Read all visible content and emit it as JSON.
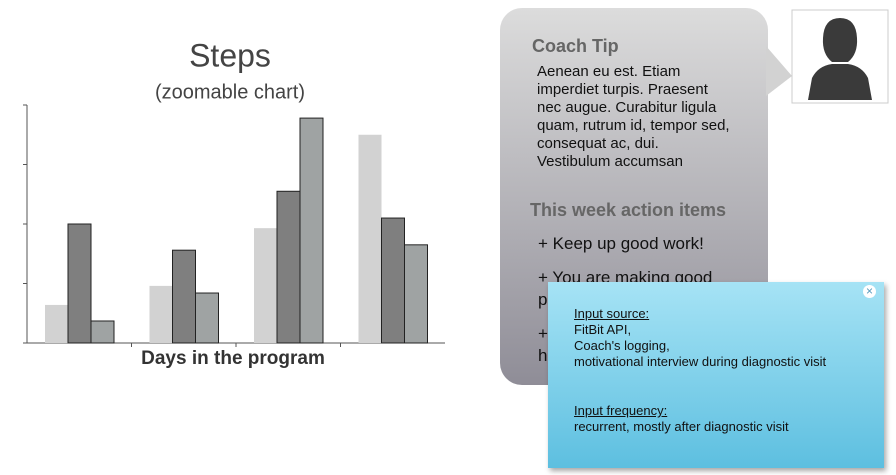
{
  "chart_data": {
    "type": "bar",
    "title": "Steps",
    "subtitle": "(zoomable chart)",
    "x_label": "Days in the program",
    "categories": [
      null,
      null,
      null,
      null
    ],
    "series": [
      {
        "color": "#d2d2d2",
        "values": [
          0.64,
          0.96,
          1.93,
          3.5
        ]
      },
      {
        "color": "#7f7f7f",
        "values": [
          2.0,
          1.56,
          2.55,
          2.1
        ]
      },
      {
        "color": "#9fa3a3",
        "values": [
          0.37,
          0.84,
          3.78,
          1.65
        ]
      }
    ],
    "ylim": [
      0,
      4
    ],
    "yticks": [
      0,
      1,
      2,
      3,
      4
    ]
  },
  "coach_tip": {
    "title": "Coach Tip",
    "lines": [
      "Aenean eu est. Etiam",
      "imperdiet turpis. Praesent",
      "nec augue. Curabitur ligula",
      "quam, rutrum id, tempor sed,",
      "consequat ac, dui.",
      "Vestibulum accumsan"
    ]
  },
  "action_items": {
    "title": "This week action items",
    "items": [
      [
        "+ Keep up good work!"
      ],
      [
        "+ You are making good",
        "pr"
      ],
      [
        "+",
        "he"
      ]
    ]
  },
  "note": {
    "source_label": "Input source:",
    "source_lines": [
      "FitBit API,",
      "Coach's logging,",
      "motivational interview during diagnostic visit"
    ],
    "frequency_label": "Input frequency:",
    "frequency_lines": [
      "recurrent, mostly after diagnostic visit"
    ]
  }
}
